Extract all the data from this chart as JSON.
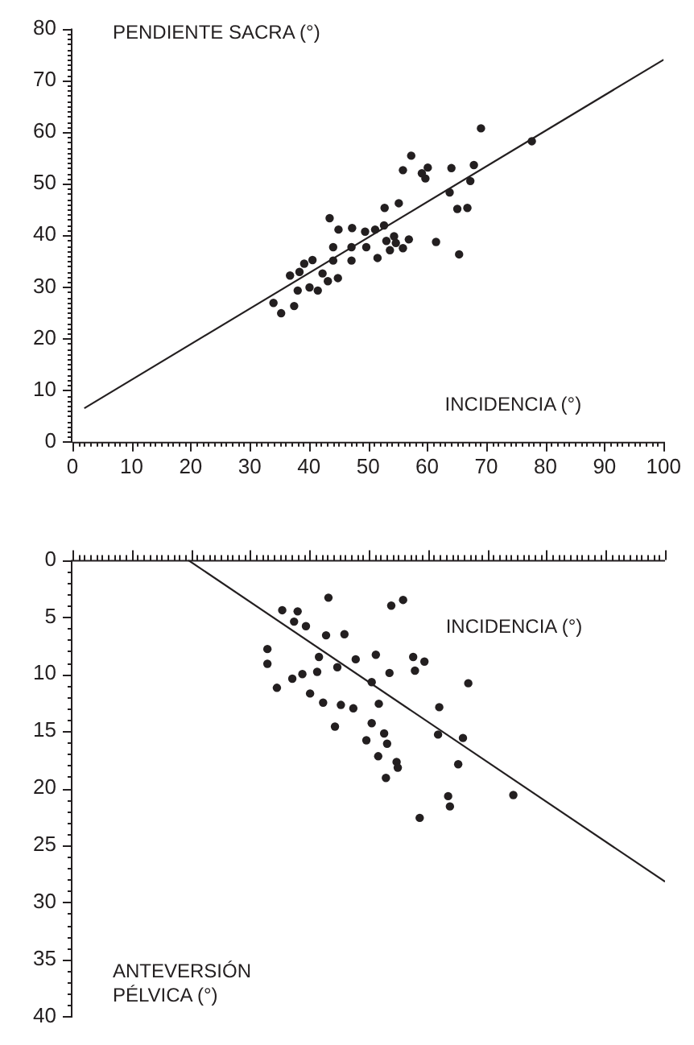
{
  "chart_data": [
    {
      "type": "scatter",
      "xlabel": "INCIDENCIA (°)",
      "ylabel": "PENDIENTE SACRA (°)",
      "xlim": [
        0,
        100
      ],
      "ylim": [
        0,
        80
      ],
      "xticks": [
        0,
        10,
        20,
        30,
        40,
        50,
        60,
        70,
        80,
        90,
        100
      ],
      "yticks": [
        0,
        10,
        20,
        30,
        40,
        50,
        60,
        70,
        80
      ],
      "grid": false,
      "legend": false,
      "series": [
        {
          "marker": "circle",
          "color": "#231f20",
          "x": [
            69.1,
            77.7,
            57.3,
            55.9,
            60.1,
            59.1,
            59.7,
            64.1,
            67.9,
            67.3,
            63.8,
            65.1,
            66.8,
            61.5,
            65.4,
            52.8,
            55.2,
            43.5,
            45.0,
            47.3,
            49.5,
            51.2,
            52.7,
            44.1,
            47.2,
            49.7,
            53.1,
            54.4,
            53.7,
            54.7,
            55.9,
            56.9,
            51.6,
            47.2,
            44.1,
            40.6,
            39.2,
            38.4,
            36.8,
            42.3,
            43.2,
            44.9,
            38.1,
            40.1,
            41.5,
            34.0,
            35.3,
            37.5
          ],
          "values": [
            60.7,
            58.2,
            55.4,
            52.6,
            53.1,
            52.0,
            51.0,
            53.0,
            53.6,
            50.5,
            48.3,
            45.1,
            45.3,
            38.7,
            36.3,
            45.3,
            46.2,
            43.3,
            41.1,
            41.4,
            40.7,
            41.1,
            41.9,
            37.7,
            37.7,
            37.7,
            38.9,
            39.8,
            37.1,
            38.5,
            37.5,
            39.2,
            35.6,
            35.1,
            35.1,
            35.2,
            34.5,
            32.9,
            32.2,
            32.6,
            31.1,
            31.7,
            29.3,
            29.9,
            29.3,
            26.9,
            24.9,
            26.3
          ]
        },
        {
          "type": "line",
          "color": "#231f20",
          "line_style": "solid",
          "x": [
            2,
            100
          ],
          "values": [
            6.5,
            74
          ]
        }
      ]
    },
    {
      "type": "scatter",
      "xlabel": "INCIDENCIA (°)",
      "ylabel": "ANTEVERSIÓN PÉLVICA (°)",
      "xlim": [
        0,
        100
      ],
      "ylim": [
        40,
        0
      ],
      "xticks": [
        0,
        10,
        20,
        30,
        40,
        50,
        60,
        70,
        80,
        90,
        100
      ],
      "yticks": [
        0,
        5,
        10,
        15,
        20,
        25,
        30,
        35,
        40
      ],
      "tick_labels": "y",
      "grid": false,
      "legend": false,
      "series": [
        {
          "marker": "circle",
          "color": "#231f20",
          "x": [
            43.2,
            53.8,
            55.8,
            35.4,
            38.0,
            37.4,
            39.4,
            42.8,
            45.9,
            32.9,
            32.9,
            41.6,
            44.7,
            47.8,
            51.2,
            57.5,
            59.4,
            57.8,
            53.5,
            41.3,
            38.8,
            37.1,
            34.5,
            50.5,
            66.8,
            40.1,
            42.3,
            45.3,
            47.4,
            51.7,
            61.9,
            44.3,
            50.5,
            52.6,
            49.6,
            53.1,
            61.7,
            65.9,
            51.6,
            54.7,
            54.9,
            65.1,
            52.9,
            63.4,
            63.7,
            74.4,
            58.6
          ],
          "values": [
            3.3,
            4.0,
            3.5,
            4.4,
            4.5,
            5.4,
            5.8,
            6.6,
            6.5,
            7.8,
            9.1,
            8.5,
            9.4,
            8.7,
            8.3,
            8.5,
            8.9,
            9.7,
            9.9,
            9.8,
            10.0,
            10.4,
            11.2,
            10.7,
            10.8,
            11.7,
            12.5,
            12.7,
            13.0,
            12.6,
            12.9,
            14.6,
            14.3,
            15.2,
            15.8,
            16.1,
            15.3,
            15.6,
            17.2,
            17.7,
            18.2,
            17.9,
            19.1,
            20.7,
            21.6,
            20.6,
            22.6
          ]
        },
        {
          "type": "line",
          "color": "#231f20",
          "line_style": "solid",
          "x": [
            19.5,
            100
          ],
          "values": [
            0,
            28.2
          ]
        }
      ]
    }
  ]
}
